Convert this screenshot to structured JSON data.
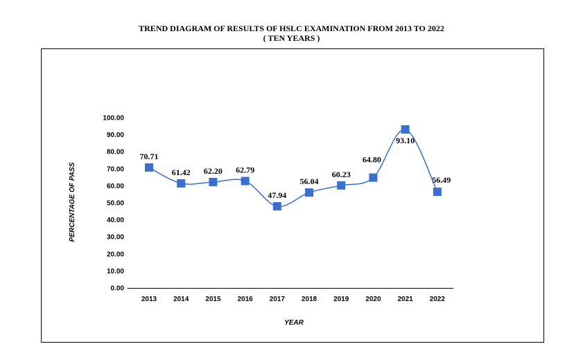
{
  "chart_data": {
    "type": "line",
    "title": "TREND DIAGRAM OF RESULTS OF HSLC EXAMINATION FROM 2013 TO 2022",
    "subtitle": "( TEN YEARS )",
    "xlabel": "YEAR",
    "ylabel": "PERCENTAGE OF PASS",
    "categories": [
      "2013",
      "2014",
      "2015",
      "2016",
      "2017",
      "2018",
      "2019",
      "2020",
      "2021",
      "2022"
    ],
    "series": [
      {
        "values": [
          70.71,
          61.42,
          62.2,
          62.79,
          47.94,
          56.04,
          60.23,
          64.8,
          93.1,
          56.49
        ],
        "labels": [
          "70.71",
          "61.42",
          "62.20",
          "62.79",
          "47.94",
          "56.04",
          "60.23",
          "64.80",
          "93.10",
          "56.49"
        ],
        "color": "#3a6fd0"
      }
    ],
    "ylim": [
      0,
      100
    ],
    "yticks": [
      "0.00",
      "10.00",
      "20.00",
      "30.00",
      "40.00",
      "50.00",
      "60.00",
      "70.00",
      "80.00",
      "90.00",
      "100.00"
    ],
    "grid": false,
    "line_style": "smooth",
    "marker": "square"
  }
}
